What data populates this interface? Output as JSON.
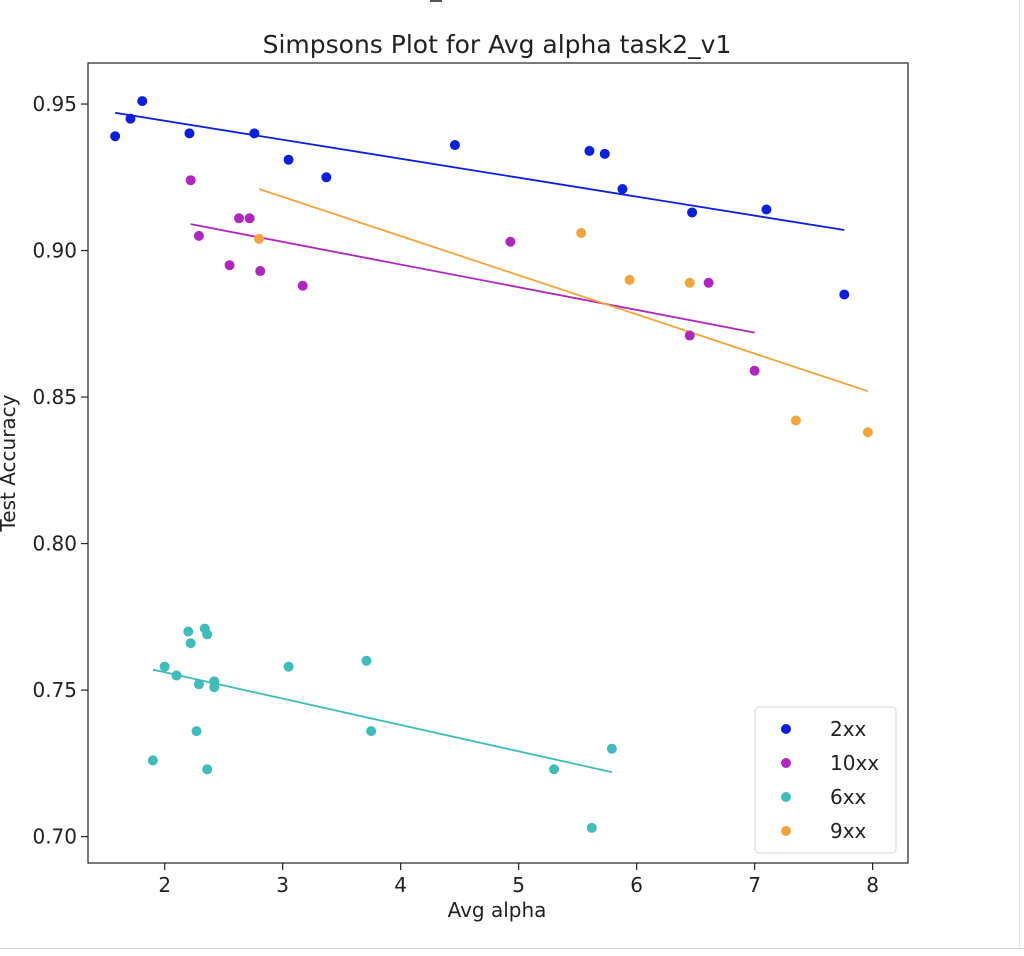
{
  "chart_data": {
    "type": "scatter",
    "title": "Simpsons Plot for Avg alpha task2_v1",
    "xlabel": "Avg alpha",
    "ylabel": "Test Accuracy",
    "xlim": [
      1.35,
      8.3
    ],
    "ylim": [
      0.691,
      0.964
    ],
    "xticks": [
      2,
      3,
      4,
      5,
      6,
      7,
      8
    ],
    "yticks": [
      0.7,
      0.75,
      0.8,
      0.85,
      0.9,
      0.95
    ],
    "xtick_labels": [
      "2",
      "3",
      "4",
      "5",
      "6",
      "7",
      "8"
    ],
    "ytick_labels": [
      "0.70",
      "0.75",
      "0.80",
      "0.85",
      "0.90",
      "0.95"
    ],
    "grid": false,
    "legend": "bottom-right",
    "series": [
      {
        "name": "2xx",
        "color": "#0a1fe0",
        "points": [
          [
            1.58,
            0.939
          ],
          [
            1.71,
            0.945
          ],
          [
            1.81,
            0.951
          ],
          [
            2.21,
            0.94
          ],
          [
            2.76,
            0.94
          ],
          [
            3.05,
            0.931
          ],
          [
            3.37,
            0.925
          ],
          [
            4.46,
            0.936
          ],
          [
            5.6,
            0.934
          ],
          [
            5.73,
            0.933
          ],
          [
            5.88,
            0.921
          ],
          [
            6.47,
            0.913
          ],
          [
            7.1,
            0.914
          ],
          [
            7.76,
            0.885
          ]
        ],
        "fit": [
          [
            1.58,
            0.947
          ],
          [
            7.76,
            0.907
          ]
        ]
      },
      {
        "name": "10xx",
        "color": "#b026c0",
        "points": [
          [
            2.22,
            0.924
          ],
          [
            2.29,
            0.905
          ],
          [
            2.55,
            0.895
          ],
          [
            2.63,
            0.911
          ],
          [
            2.72,
            0.911
          ],
          [
            2.81,
            0.893
          ],
          [
            3.17,
            0.888
          ],
          [
            4.93,
            0.903
          ],
          [
            6.45,
            0.871
          ],
          [
            6.61,
            0.889
          ],
          [
            7.0,
            0.859
          ]
        ],
        "fit": [
          [
            2.22,
            0.909
          ],
          [
            7.0,
            0.872
          ]
        ]
      },
      {
        "name": "6xx",
        "color": "#3fbcbc",
        "points": [
          [
            1.9,
            0.726
          ],
          [
            2.0,
            0.758
          ],
          [
            2.1,
            0.755
          ],
          [
            2.2,
            0.77
          ],
          [
            2.22,
            0.766
          ],
          [
            2.27,
            0.736
          ],
          [
            2.29,
            0.752
          ],
          [
            2.34,
            0.771
          ],
          [
            2.36,
            0.769
          ],
          [
            2.36,
            0.723
          ],
          [
            2.42,
            0.753
          ],
          [
            2.42,
            0.751
          ],
          [
            3.05,
            0.758
          ],
          [
            3.71,
            0.76
          ],
          [
            3.75,
            0.736
          ],
          [
            5.3,
            0.723
          ],
          [
            5.62,
            0.703
          ],
          [
            5.79,
            0.73
          ]
        ],
        "fit": [
          [
            1.9,
            0.757
          ],
          [
            5.79,
            0.722
          ]
        ]
      },
      {
        "name": "9xx",
        "color": "#f5a43a",
        "points": [
          [
            2.8,
            0.904
          ],
          [
            5.53,
            0.906
          ],
          [
            5.94,
            0.89
          ],
          [
            6.45,
            0.889
          ],
          [
            7.35,
            0.842
          ],
          [
            7.96,
            0.838
          ]
        ],
        "fit": [
          [
            2.8,
            0.921
          ],
          [
            7.96,
            0.852
          ]
        ]
      }
    ]
  }
}
